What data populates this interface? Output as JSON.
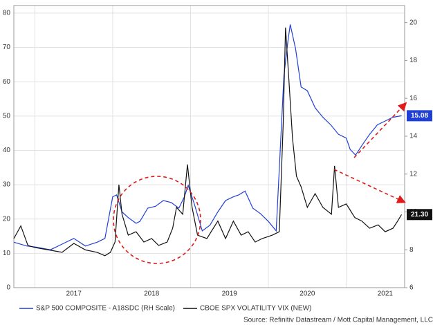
{
  "chart_data": {
    "type": "line",
    "xlim": [
      2016.73,
      2021.75
    ],
    "xticks": [
      {
        "value": 2017.5,
        "label": "2017"
      },
      {
        "value": 2018.5,
        "label": "2018"
      },
      {
        "value": 2019.5,
        "label": "2019"
      },
      {
        "value": 2020.5,
        "label": "2020"
      },
      {
        "value": 2021.5,
        "label": "2021"
      }
    ],
    "xgrid": [
      2017,
      2018,
      2019,
      2020,
      2021
    ],
    "ylim": [
      0,
      82.2
    ],
    "yticks": [
      0,
      10,
      20,
      30,
      40,
      50,
      60,
      70,
      80
    ],
    "y2lim": [
      6,
      20.9
    ],
    "y2ticks": [
      6,
      8,
      10,
      12,
      14,
      16,
      18,
      20
    ],
    "grid": true,
    "series": [
      {
        "name": "S&P 500 COMPOSITE - A18SDC (RH Scale)",
        "color": "#1f3fd6",
        "axis": "y2",
        "end_label": "15.08",
        "x": [
          2016.73,
          2016.9,
          2017.0,
          2017.2,
          2017.35,
          2017.5,
          2017.65,
          2017.8,
          2017.9,
          2018.0,
          2018.05,
          2018.12,
          2018.2,
          2018.3,
          2018.35,
          2018.45,
          2018.55,
          2018.65,
          2018.75,
          2018.85,
          2018.92,
          2018.97,
          2019.05,
          2019.15,
          2019.25,
          2019.35,
          2019.45,
          2019.55,
          2019.62,
          2019.7,
          2019.8,
          2019.9,
          2020.0,
          2020.1,
          2020.2,
          2020.25,
          2020.28,
          2020.35,
          2020.42,
          2020.5,
          2020.6,
          2020.7,
          2020.8,
          2020.9,
          2021.0,
          2021.05,
          2021.12,
          2021.2,
          2021.3,
          2021.4,
          2021.5,
          2021.6,
          2021.71
        ],
        "values": [
          8.4,
          8.2,
          8.15,
          8.0,
          8.3,
          8.6,
          8.2,
          8.4,
          8.6,
          10.8,
          10.9,
          10.0,
          9.7,
          9.4,
          9.5,
          10.2,
          10.3,
          10.6,
          10.5,
          10.2,
          10.8,
          11.4,
          10.4,
          9.0,
          9.3,
          10.0,
          10.6,
          10.8,
          10.9,
          11.1,
          10.2,
          9.9,
          9.5,
          9.0,
          17.2,
          19.0,
          19.9,
          18.6,
          16.6,
          16.4,
          15.5,
          15.0,
          14.6,
          14.1,
          13.9,
          13.3,
          13.0,
          13.5,
          14.1,
          14.6,
          14.8,
          15.0,
          15.08
        ]
      },
      {
        "name": "CBOE SPX VOLATILITY VIX (NEW)",
        "color": "#111111",
        "axis": "y",
        "end_label": "21.30",
        "x": [
          2016.73,
          2016.82,
          2016.91,
          2017.0,
          2017.2,
          2017.35,
          2017.5,
          2017.65,
          2017.8,
          2017.9,
          2017.97,
          2018.03,
          2018.08,
          2018.12,
          2018.2,
          2018.3,
          2018.4,
          2018.5,
          2018.59,
          2018.7,
          2018.77,
          2018.82,
          2018.9,
          2018.96,
          2019.02,
          2019.09,
          2019.21,
          2019.35,
          2019.45,
          2019.55,
          2019.65,
          2019.74,
          2019.83,
          2019.92,
          2020.05,
          2020.14,
          2020.19,
          2020.22,
          2020.26,
          2020.31,
          2020.36,
          2020.42,
          2020.5,
          2020.6,
          2020.7,
          2020.81,
          2020.85,
          2020.9,
          2021.0,
          2021.11,
          2021.2,
          2021.3,
          2021.41,
          2021.5,
          2021.6,
          2021.66,
          2021.71
        ],
        "values": [
          14.3,
          18,
          12.3,
          11.7,
          10.9,
          10.3,
          12.9,
          11,
          10.3,
          9.3,
          10.3,
          13.3,
          30,
          21.4,
          15.3,
          16.3,
          13.3,
          14.3,
          12.3,
          13.3,
          17.3,
          23.4,
          21.4,
          35.9,
          23.4,
          15.3,
          14.3,
          19.4,
          14.3,
          19.4,
          15.3,
          16.3,
          13.3,
          14.3,
          15.3,
          16.3,
          47.6,
          75.8,
          61.7,
          43.5,
          32.5,
          29.4,
          23.4,
          27.4,
          23.4,
          21.4,
          35.5,
          23.4,
          24.4,
          20.4,
          19.4,
          17.3,
          18.3,
          16.3,
          17.3,
          19.4,
          21.3
        ]
      }
    ],
    "source": "Source: Refinitiv Datastream / Mott Capital Management, LLC"
  }
}
